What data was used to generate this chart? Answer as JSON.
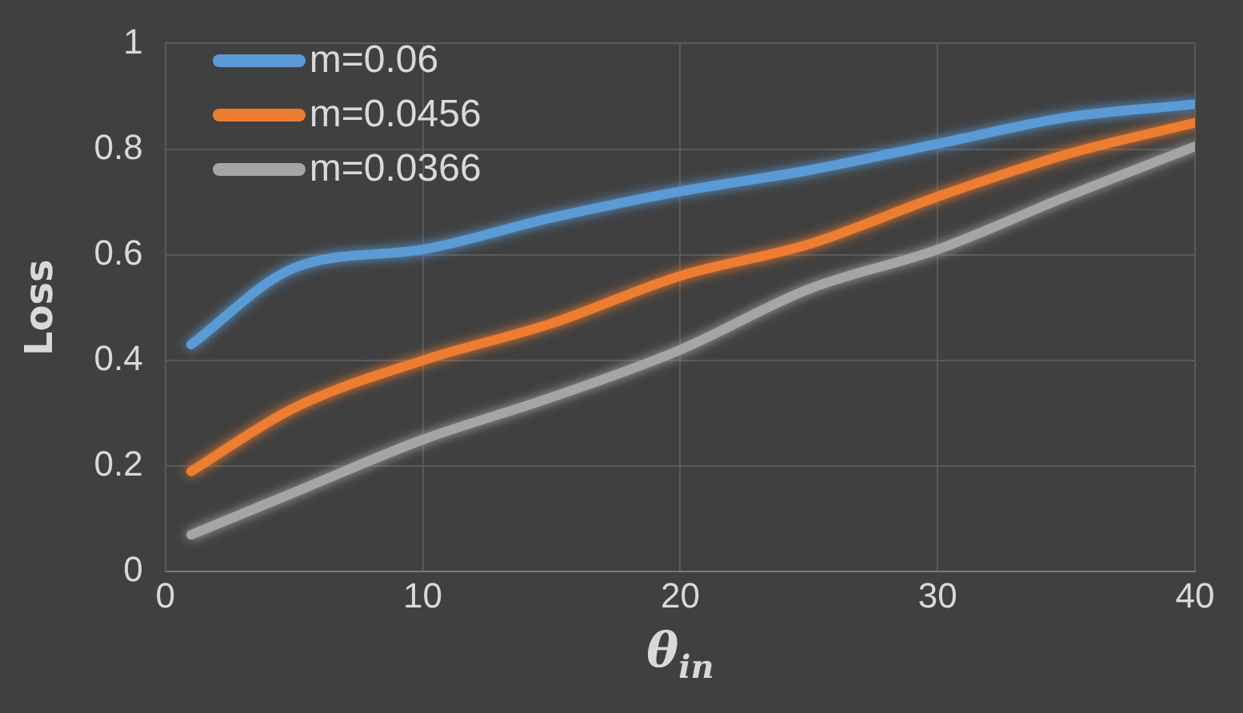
{
  "chart_data": {
    "type": "line",
    "xlabel": "θ$_{in}$",
    "ylabel": "Loss",
    "x": [
      1,
      5,
      10,
      15,
      20,
      25,
      30,
      35,
      40
    ],
    "series": [
      {
        "name": "m=0.06",
        "color": "#5b9bd5",
        "values": [
          0.43,
          0.575,
          0.61,
          0.67,
          0.72,
          0.76,
          0.81,
          0.86,
          0.885
        ]
      },
      {
        "name": "m=0.0456",
        "color": "#ed7d31",
        "values": [
          0.19,
          0.31,
          0.4,
          0.47,
          0.56,
          0.62,
          0.71,
          0.79,
          0.85
        ]
      },
      {
        "name": "m=0.0366",
        "color": "#a5a5a5",
        "values": [
          0.07,
          0.15,
          0.25,
          0.33,
          0.42,
          0.535,
          0.61,
          0.71,
          0.805
        ]
      }
    ],
    "xlim": [
      0,
      40
    ],
    "xticks": [
      0,
      10,
      20,
      30,
      40
    ],
    "ylim": [
      0,
      1
    ],
    "yticks": [
      0,
      0.2,
      0.4,
      0.6,
      0.8,
      1
    ],
    "grid": true,
    "legend": "top left",
    "marker": "none",
    "line_style": "solid"
  }
}
